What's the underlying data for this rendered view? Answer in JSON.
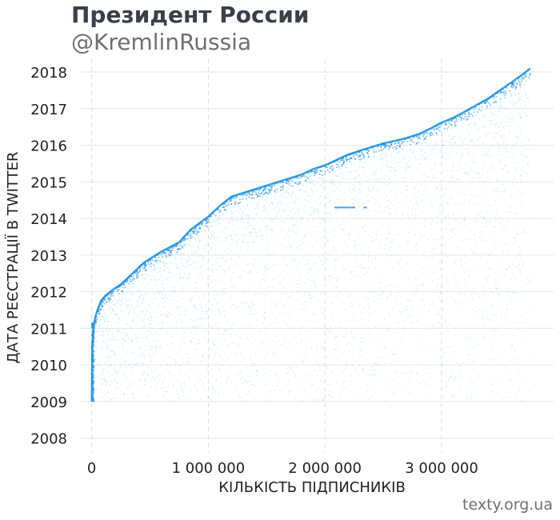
{
  "header": {
    "title": "Президент России",
    "subtitle": "@KremlinRussia"
  },
  "footer": {
    "source": "texty.org.ua"
  },
  "colors": {
    "points": "#1a8fe3",
    "grid_horizontal": "#e6e6e6",
    "grid_vertical": "#d8dde3",
    "text": "#222222",
    "title": "#3a3f4b",
    "subtitle": "#6f6f6f"
  },
  "chart_data": {
    "type": "scatter",
    "title": "Президент России",
    "subtitle": "@KremlinRussia",
    "xlabel": "КІЛЬКІСТЬ ПІДПИСНИКІВ",
    "ylabel": "ДАТА РЕЄСТРАЦІЇ В TWITTER",
    "xlim": [
      -100000,
      3960000
    ],
    "ylim": [
      2007.6,
      2018.35
    ],
    "x_ticks": [
      0,
      1000000,
      2000000,
      3000000
    ],
    "x_tick_labels": [
      "0",
      "1 000 000",
      "2 000 000",
      "3 000 000"
    ],
    "y_ticks": [
      2008,
      2009,
      2010,
      2011,
      2012,
      2013,
      2014,
      2015,
      2016,
      2017,
      2018
    ],
    "y_tick_labels": [
      "2008",
      "2009",
      "2010",
      "2011",
      "2012",
      "2013",
      "2014",
      "2015",
      "2016",
      "2017",
      "2018"
    ],
    "grid": true,
    "series": [
      {
        "values_description": "upper envelope of follower registration dates",
        "x": [
          0,
          5000,
          15000,
          30000,
          50000,
          80000,
          120000,
          180000,
          250000,
          350000,
          450000,
          600000,
          750000,
          850000,
          1000000,
          1100000,
          1200000,
          1350000,
          1500000,
          1650000,
          1800000,
          1900000,
          2000000,
          2100000,
          2200000,
          2300000,
          2400000,
          2500000,
          2600000,
          2700000,
          2800000,
          2900000,
          3000000,
          3100000,
          3200000,
          3300000,
          3400000,
          3500000,
          3600000,
          3700000,
          3760000
        ],
        "y": [
          2009.0,
          2010.5,
          2011.0,
          2011.3,
          2011.5,
          2011.75,
          2011.9,
          2012.05,
          2012.2,
          2012.5,
          2012.8,
          2013.1,
          2013.35,
          2013.7,
          2014.05,
          2014.35,
          2014.6,
          2014.75,
          2014.9,
          2015.05,
          2015.2,
          2015.35,
          2015.45,
          2015.6,
          2015.75,
          2015.85,
          2015.95,
          2016.05,
          2016.12,
          2016.2,
          2016.3,
          2016.45,
          2016.62,
          2016.75,
          2016.92,
          2017.1,
          2017.28,
          2017.5,
          2017.72,
          2017.95,
          2018.1
        ]
      }
    ],
    "annotations": [
      {
        "type": "horizontal-streak",
        "x_range": [
          2080000,
          2260000
        ],
        "y": 2014.3
      },
      {
        "type": "horizontal-streak",
        "x_range": [
          2330000,
          2360000
        ],
        "y": 2014.3
      }
    ]
  }
}
